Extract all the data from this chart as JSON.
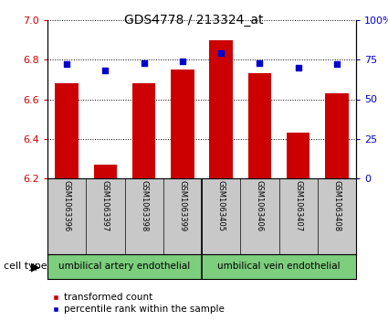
{
  "title": "GDS4778 / 213324_at",
  "samples": [
    "GSM1063396",
    "GSM1063397",
    "GSM1063398",
    "GSM1063399",
    "GSM1063405",
    "GSM1063406",
    "GSM1063407",
    "GSM1063408"
  ],
  "bar_values": [
    6.68,
    6.27,
    6.68,
    6.75,
    6.9,
    6.73,
    6.43,
    6.63
  ],
  "percentile_values": [
    72,
    68,
    73,
    74,
    79,
    73,
    70,
    72
  ],
  "ylim_left": [
    6.2,
    7.0
  ],
  "ylim_right": [
    0,
    100
  ],
  "yticks_left": [
    6.2,
    6.4,
    6.6,
    6.8,
    7.0
  ],
  "yticks_right": [
    0,
    25,
    50,
    75,
    100
  ],
  "ytick_labels_right": [
    "0",
    "25",
    "50",
    "75",
    "100%"
  ],
  "bar_color": "#cc0000",
  "percentile_color": "#0000cc",
  "grid_color": "#000000",
  "cell_types": [
    {
      "label": "umbilical artery endothelial",
      "start": 0,
      "end": 3,
      "color": "#90ee90"
    },
    {
      "label": "umbilical vein endothelial",
      "start": 4,
      "end": 7,
      "color": "#90ee90"
    }
  ],
  "cell_type_label": "cell type",
  "legend_items": [
    {
      "label": "transformed count",
      "color": "#cc0000"
    },
    {
      "label": "percentile rank within the sample",
      "color": "#0000cc"
    }
  ],
  "bar_width": 0.6,
  "background_color": "#ffffff",
  "xlabel_area_color": "#c8c8c8",
  "cell_type_area_color": "#7dce7d"
}
